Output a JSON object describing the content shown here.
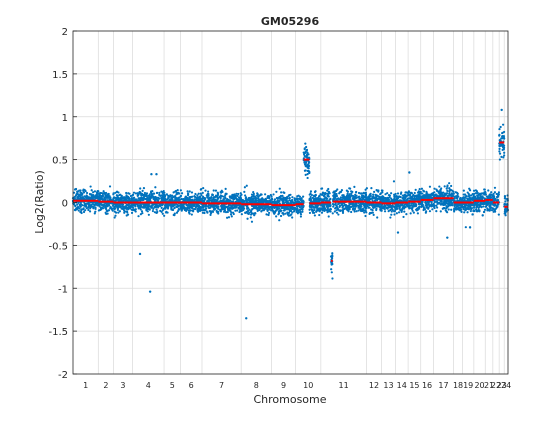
{
  "chart_data": {
    "type": "scatter",
    "title": "GM05296",
    "xlabel": "Chromosome",
    "ylabel": "Log2(Ratio)",
    "ylim": [
      -2,
      2
    ],
    "yticks": [
      2,
      1.5,
      1,
      0.5,
      0,
      -0.5,
      -1,
      -1.5,
      -2
    ],
    "ytick_labels": [
      "2",
      "1.5",
      "1",
      "0.5",
      "0",
      "-0.5",
      "-1",
      "-1.5",
      "-2"
    ],
    "grid": true,
    "colors": {
      "points": "#0072bd",
      "segments": "#ff0000",
      "grid": "#d9d9d9",
      "axes": "#262626"
    },
    "chromosomes": [
      {
        "label": "1",
        "start": 0,
        "end": 1.0
      },
      {
        "label": "2",
        "start": 1.0,
        "end": 1.6
      },
      {
        "label": "3",
        "start": 1.6,
        "end": 2.35
      },
      {
        "label": "4",
        "start": 2.35,
        "end": 3.6
      },
      {
        "label": "5",
        "start": 3.6,
        "end": 4.25
      },
      {
        "label": "6",
        "start": 4.25,
        "end": 5.1
      },
      {
        "label": "7",
        "start": 5.1,
        "end": 6.65
      },
      {
        "label": "8",
        "start": 6.65,
        "end": 7.85
      },
      {
        "label": "9",
        "start": 7.85,
        "end": 8.8
      },
      {
        "label": "10",
        "start": 8.8,
        "end": 9.8
      },
      {
        "label": "11",
        "start": 9.8,
        "end": 11.6
      },
      {
        "label": "12",
        "start": 11.6,
        "end": 12.2
      },
      {
        "label": "13",
        "start": 12.2,
        "end": 12.75
      },
      {
        "label": "14",
        "start": 12.75,
        "end": 13.25
      },
      {
        "label": "15",
        "start": 13.25,
        "end": 13.75
      },
      {
        "label": "16",
        "start": 13.75,
        "end": 14.25
      },
      {
        "label": "17",
        "start": 14.25,
        "end": 15.05
      },
      {
        "label": "18",
        "start": 15.05,
        "end": 15.4
      },
      {
        "label": "19",
        "start": 15.4,
        "end": 15.85
      },
      {
        "label": "20",
        "start": 15.85,
        "end": 16.3
      },
      {
        "label": "21",
        "start": 16.3,
        "end": 16.6
      },
      {
        "label": "22",
        "start": 16.6,
        "end": 16.85
      },
      {
        "label": "23",
        "start": 16.85,
        "end": 17.05
      },
      {
        "label": "24",
        "start": 17.05,
        "end": 17.2
      }
    ],
    "xlim": [
      0,
      17.2
    ],
    "segments": [
      {
        "chrom": "1",
        "x0": 0.0,
        "x1": 1.0,
        "y": 0.02
      },
      {
        "chrom": "2",
        "x0": 1.0,
        "x1": 1.6,
        "y": 0.01
      },
      {
        "chrom": "3",
        "x0": 1.6,
        "x1": 2.35,
        "y": 0.0
      },
      {
        "chrom": "4",
        "x0": 2.35,
        "x1": 3.6,
        "y": 0.0
      },
      {
        "chrom": "5",
        "x0": 3.6,
        "x1": 4.25,
        "y": 0.0
      },
      {
        "chrom": "6",
        "x0": 4.25,
        "x1": 5.1,
        "y": 0.0
      },
      {
        "chrom": "7",
        "x0": 5.1,
        "x1": 6.65,
        "y": -0.01
      },
      {
        "chrom": "8",
        "x0": 6.65,
        "x1": 7.85,
        "y": -0.02
      },
      {
        "chrom": "9",
        "x0": 7.85,
        "x1": 8.8,
        "y": -0.03
      },
      {
        "chrom": "10",
        "x0": 8.8,
        "x1": 9.12,
        "y": -0.02
      },
      {
        "chrom": "10",
        "x0": 9.12,
        "x1": 9.35,
        "y": 0.5
      },
      {
        "chrom": "10",
        "x0": 9.35,
        "x1": 9.8,
        "y": -0.01
      },
      {
        "chrom": "11",
        "x0": 9.8,
        "x1": 10.2,
        "y": 0.0
      },
      {
        "chrom": "11",
        "x0": 10.2,
        "x1": 10.27,
        "y": -0.68
      },
      {
        "chrom": "11",
        "x0": 10.27,
        "x1": 11.6,
        "y": 0.01
      },
      {
        "chrom": "12",
        "x0": 11.6,
        "x1": 12.2,
        "y": 0.0
      },
      {
        "chrom": "13",
        "x0": 12.2,
        "x1": 12.75,
        "y": -0.01
      },
      {
        "chrom": "14",
        "x0": 12.75,
        "x1": 13.25,
        "y": 0.0
      },
      {
        "chrom": "15",
        "x0": 13.25,
        "x1": 13.75,
        "y": 0.01
      },
      {
        "chrom": "16",
        "x0": 13.75,
        "x1": 14.25,
        "y": 0.03
      },
      {
        "chrom": "17",
        "x0": 14.25,
        "x1": 15.05,
        "y": 0.05
      },
      {
        "chrom": "18",
        "x0": 15.05,
        "x1": 15.4,
        "y": 0.0
      },
      {
        "chrom": "19",
        "x0": 15.4,
        "x1": 15.85,
        "y": 0.0
      },
      {
        "chrom": "20",
        "x0": 15.85,
        "x1": 16.3,
        "y": 0.02
      },
      {
        "chrom": "21",
        "x0": 16.3,
        "x1": 16.6,
        "y": 0.03
      },
      {
        "chrom": "22",
        "x0": 16.6,
        "x1": 16.85,
        "y": 0.0
      },
      {
        "chrom": "23",
        "x0": 16.85,
        "x1": 17.05,
        "y": 0.7
      },
      {
        "chrom": "24",
        "x0": 17.05,
        "x1": 17.2,
        "y": -0.05
      }
    ],
    "outliers": [
      {
        "x": 2.65,
        "y": -0.6
      },
      {
        "x": 3.05,
        "y": -1.04
      },
      {
        "x": 6.85,
        "y": -1.35
      },
      {
        "x": 3.1,
        "y": 0.33
      },
      {
        "x": 3.3,
        "y": 0.33
      },
      {
        "x": 13.3,
        "y": 0.35
      },
      {
        "x": 12.85,
        "y": -0.35
      },
      {
        "x": 14.8,
        "y": -0.41
      },
      {
        "x": 15.7,
        "y": -0.29
      },
      {
        "x": 16.2,
        "y": -0.15
      },
      {
        "x": 16.95,
        "y": 1.08
      }
    ]
  }
}
